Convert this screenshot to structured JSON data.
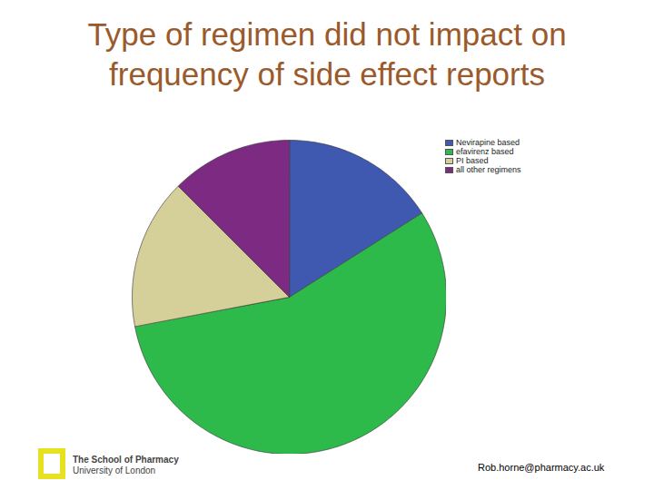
{
  "chart_data": {
    "type": "pie",
    "title": "Type of regimen did not impact on frequency of side effect reports",
    "categories": [
      "Nevirapine based",
      "efavirenz based",
      "PI based",
      "all other regimens"
    ],
    "values": [
      16,
      56,
      15.5,
      12.5
    ],
    "colors": [
      "#3f58b0",
      "#2eb94b",
      "#d5cf9a",
      "#7d2a82"
    ],
    "legend": "top-right",
    "annotations": [
      "The School of Pharmacy",
      "University of London",
      "Rob.horne@pharmacy.ac.uk"
    ]
  }
}
